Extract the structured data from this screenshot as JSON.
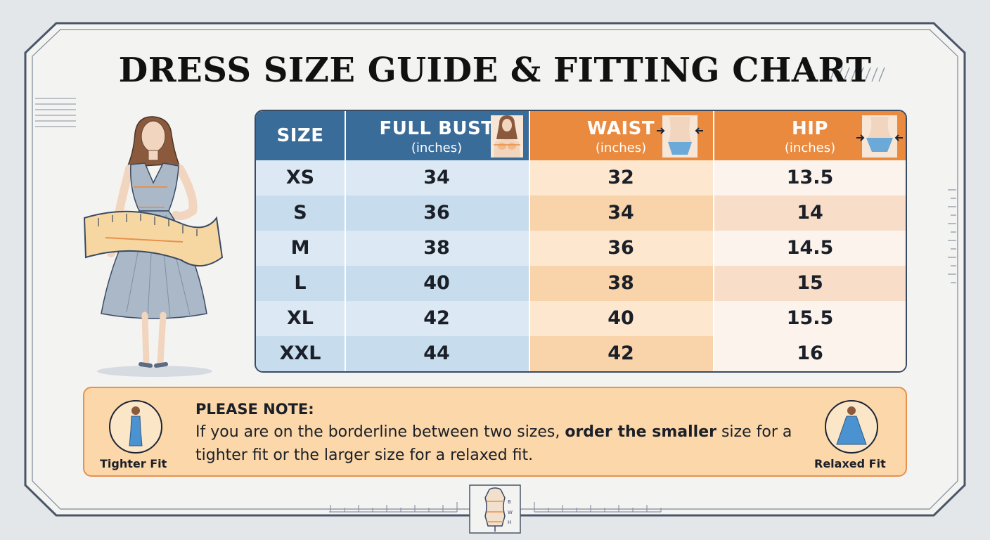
{
  "title": "DRESS SIZE GUIDE & FITTING CHART",
  "colors": {
    "blue_header": "#3a6c9a",
    "orange_header": "#ea8a3f",
    "blue_light": "#dce9f4",
    "blue_mid": "#c7dcec",
    "orange_light": "#fde8cf",
    "orange_mid": "#f9d4aa",
    "hip_light": "#fbf3ec",
    "hip_mid": "#f8ddc9",
    "note_bg": "#fbd7a9"
  },
  "table": {
    "headers": {
      "size": "SIZE",
      "bust": "FULL BUST",
      "bust_unit": "(inches)",
      "waist": "WAIST",
      "waist_unit": "(inches)",
      "hip": "HIP",
      "hip_unit": "(inches)"
    },
    "rows": [
      {
        "size": "XS",
        "bust": "34",
        "waist": "32",
        "hip": "13.5"
      },
      {
        "size": "S",
        "bust": "36",
        "waist": "34",
        "hip": "14"
      },
      {
        "size": "M",
        "bust": "38",
        "waist": "36",
        "hip": "14.5"
      },
      {
        "size": "L",
        "bust": "40",
        "waist": "38",
        "hip": "15"
      },
      {
        "size": "XL",
        "bust": "42",
        "waist": "40",
        "hip": "15.5"
      },
      {
        "size": "XXL",
        "bust": "44",
        "waist": "42",
        "hip": "16"
      }
    ]
  },
  "note": {
    "heading": "PLEASE NOTE:",
    "text_a": "If you are on the borderline between two sizes, ",
    "text_bold": "order the smaller",
    "text_b": " size for a tighter fit or the larger size for a relaxed fit.",
    "left_label": "Tighter Fit",
    "right_label": "Relaxed Fit"
  },
  "icons": [
    "woman-measuring-tape-icon",
    "bust-icon",
    "waist-icon",
    "hip-icon",
    "tighter-fit-dress-icon",
    "relaxed-fit-dress-icon",
    "mannequin-icon"
  ],
  "mannequin_labels": [
    "B",
    "W",
    "H"
  ]
}
